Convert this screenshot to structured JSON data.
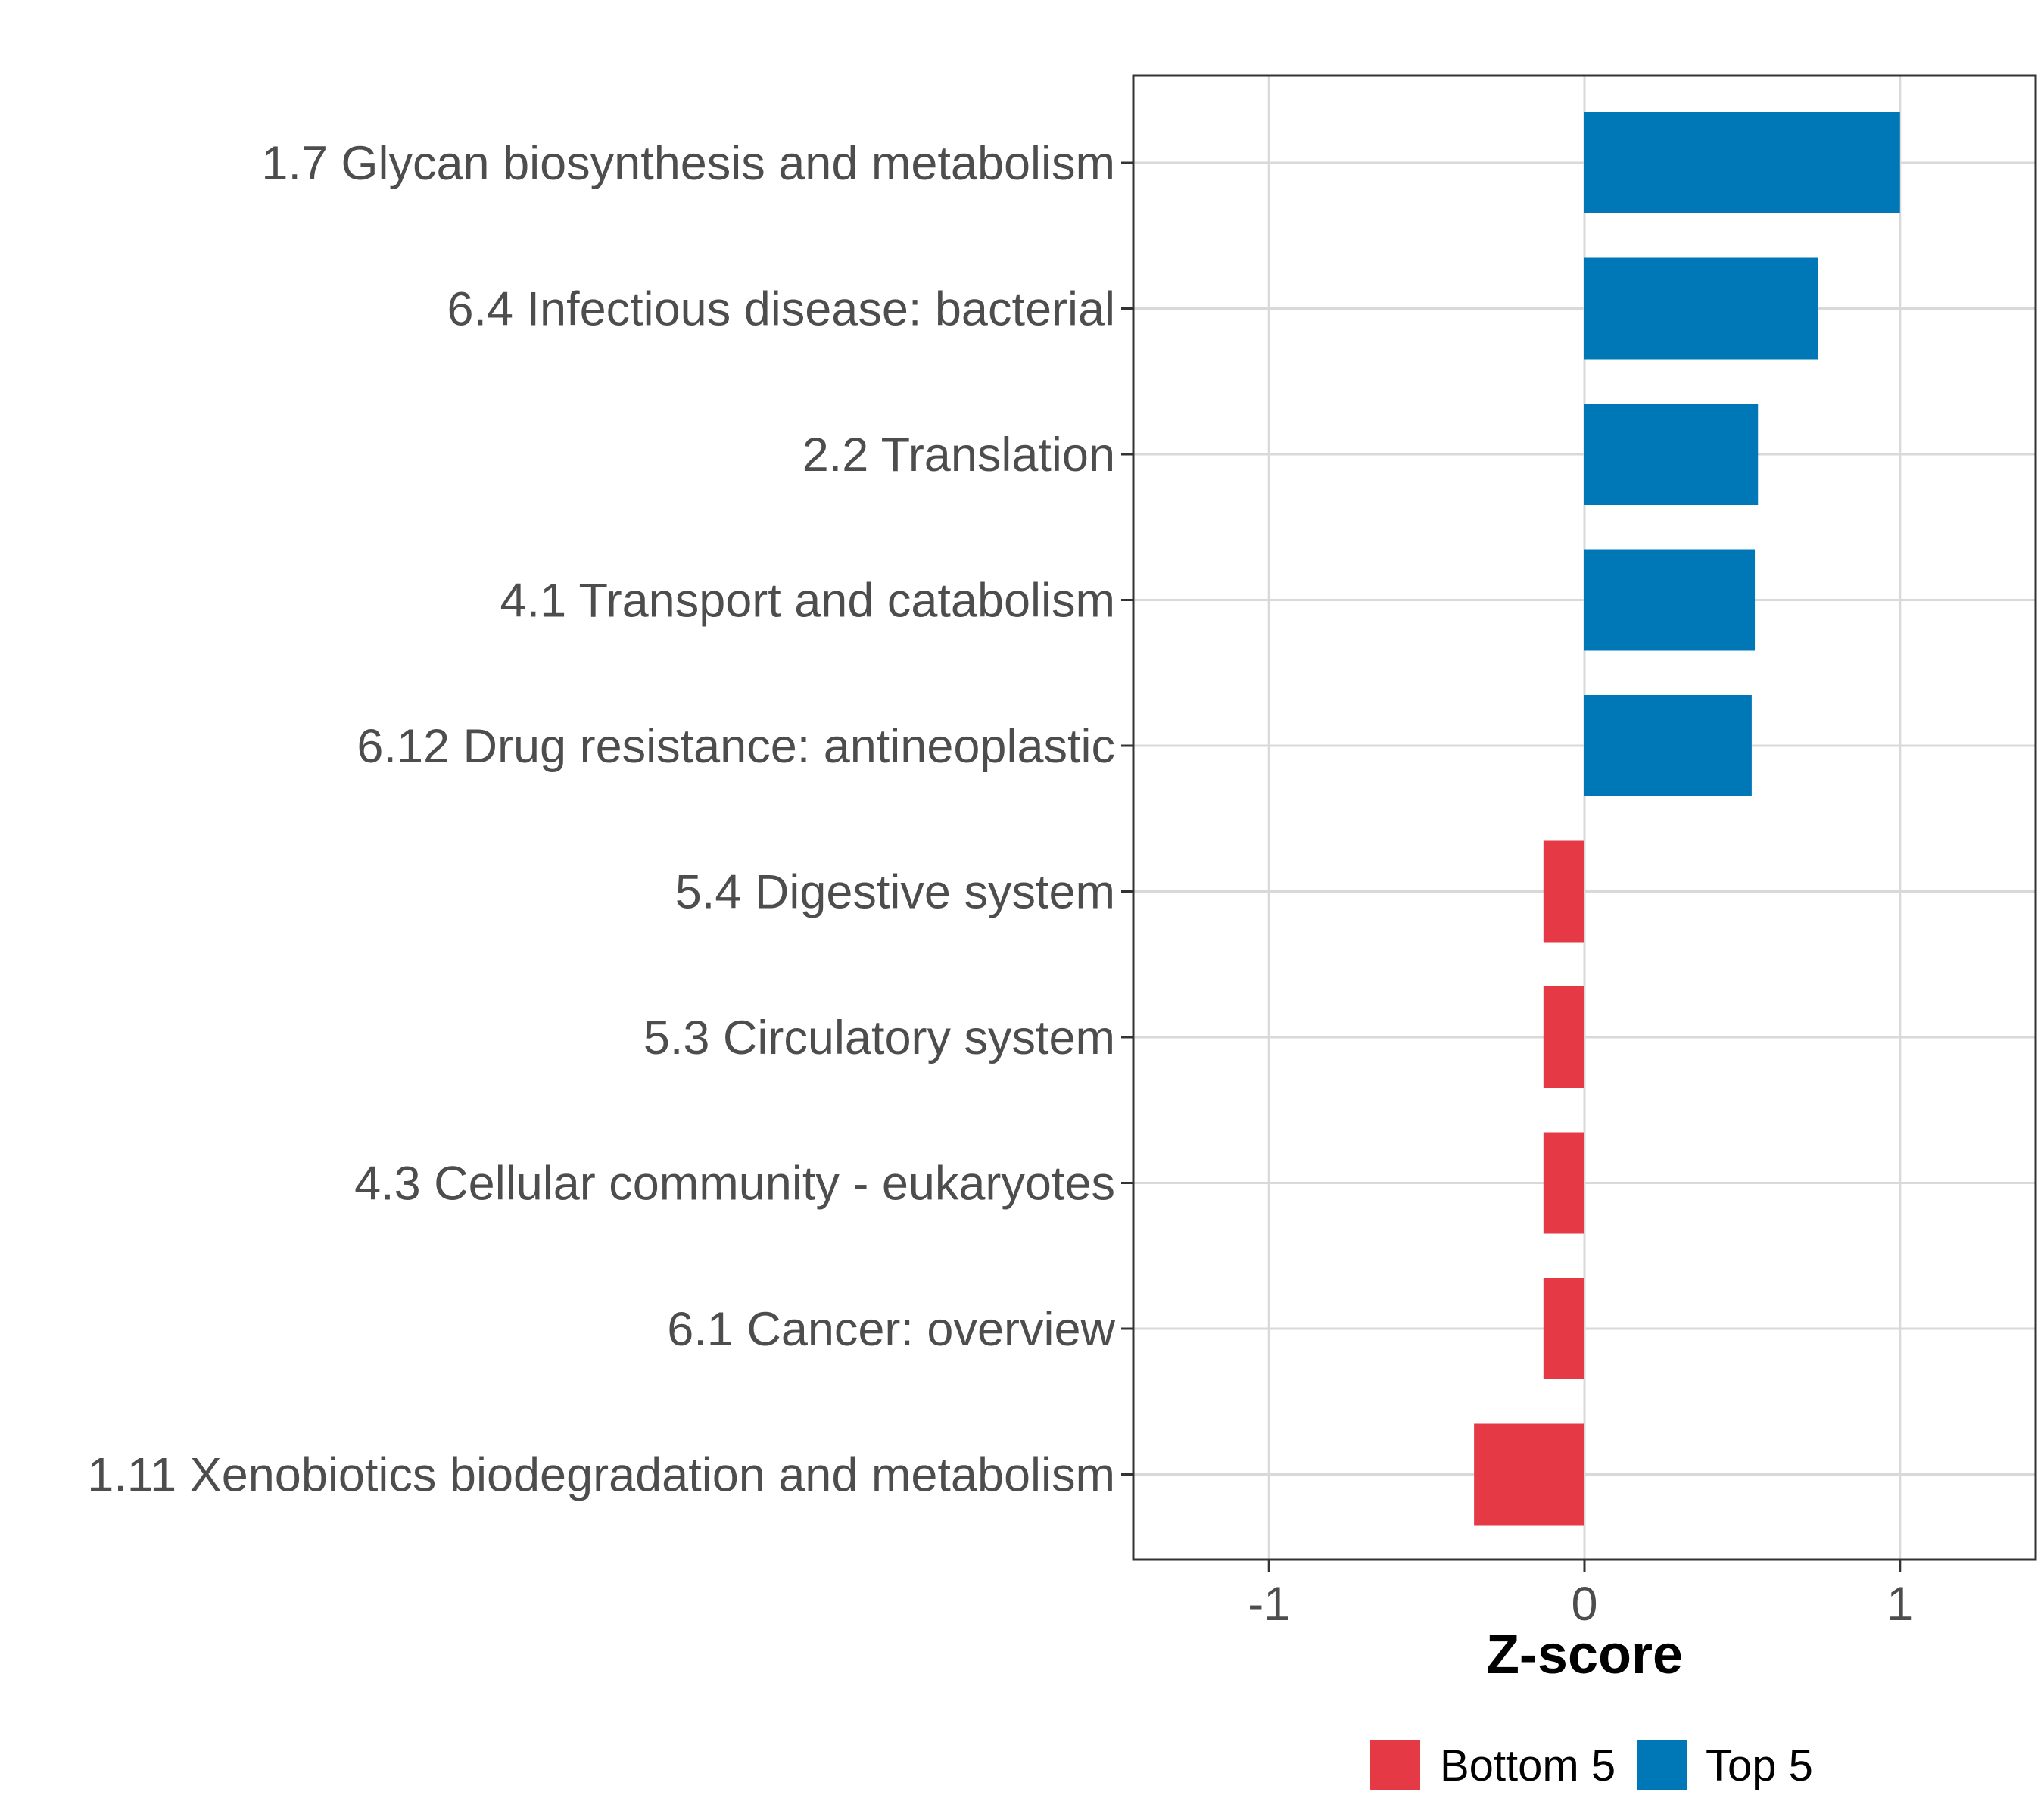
{
  "chart_data": {
    "type": "bar",
    "orientation": "horizontal",
    "title": "",
    "xlabel": "Z-score",
    "ylabel": "",
    "xlim": [
      -1.43,
      1.43
    ],
    "xticks": [
      -1,
      0,
      1
    ],
    "xtick_labels": [
      "-1",
      "0",
      "1"
    ],
    "grid": true,
    "legend_position": "bottom",
    "categories": [
      "1.7 Glycan biosynthesis and metabolism",
      "6.4 Infectious disease: bacterial",
      "2.2 Translation",
      "4.1 Transport and catabolism",
      "6.12 Drug resistance: antineoplastic",
      "5.4 Digestive system",
      "5.3 Circulatory system",
      "4.3 Cellular community - eukaryotes",
      "6.1 Cancer: overview",
      "1.11 Xenobiotics biodegradation and metabolism"
    ],
    "values": [
      1.0,
      0.74,
      0.55,
      0.54,
      0.53,
      -0.13,
      -0.13,
      -0.13,
      -0.13,
      -0.35
    ],
    "groups": [
      "Top 5",
      "Top 5",
      "Top 5",
      "Top 5",
      "Top 5",
      "Bottom 5",
      "Bottom 5",
      "Bottom 5",
      "Bottom 5",
      "Bottom 5"
    ],
    "legend": [
      {
        "name": "Bottom 5",
        "color": "#e63946"
      },
      {
        "name": "Top 5",
        "color": "#0077b6"
      }
    ]
  }
}
